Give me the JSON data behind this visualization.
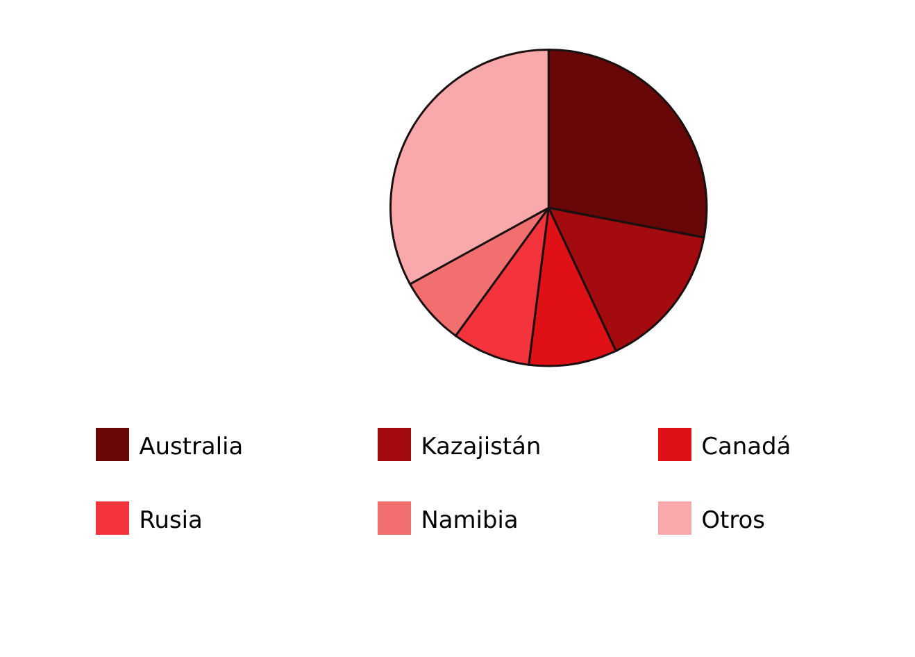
{
  "chart_data": {
    "type": "pie",
    "categories": [
      "Australia",
      "Kazajistán",
      "Canadá",
      "Rusia",
      "Namibia",
      "Otros"
    ],
    "values": [
      28,
      15,
      9,
      8,
      7,
      33
    ],
    "colors": [
      "#670707",
      "#a30b0e",
      "#e01017",
      "#f3343c",
      "#f26f6f",
      "#f9a9ab"
    ],
    "legend": "bottom"
  }
}
